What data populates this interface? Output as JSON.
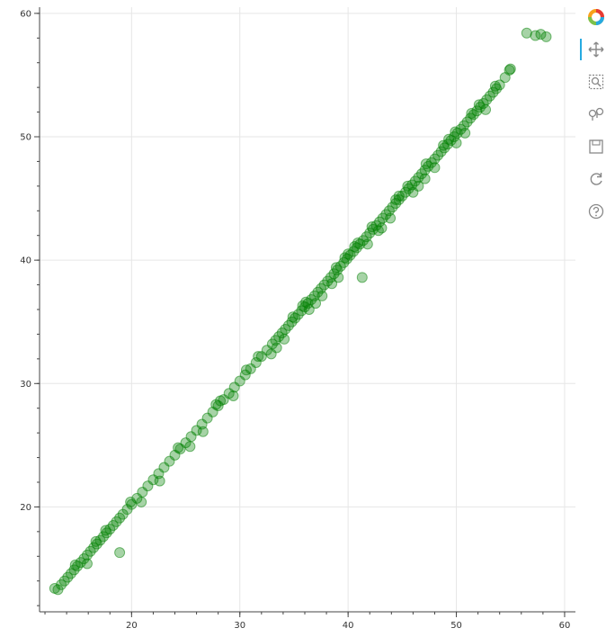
{
  "toolbar": {
    "logo_icon": "bokeh-logo-icon",
    "tools": [
      {
        "name": "pan-tool",
        "icon": "pan-icon",
        "active": true
      },
      {
        "name": "box-zoom-tool",
        "icon": "box-zoom-icon",
        "active": false
      },
      {
        "name": "wheel-zoom-tool",
        "icon": "wheel-zoom-icon",
        "active": false
      },
      {
        "name": "save-tool",
        "icon": "save-icon",
        "active": false
      },
      {
        "name": "reset-tool",
        "icon": "reset-icon",
        "active": false
      },
      {
        "name": "help-tool",
        "icon": "help-icon",
        "active": false
      }
    ]
  },
  "chart_data": {
    "type": "scatter",
    "title": "",
    "xlabel": "",
    "ylabel": "",
    "xlim": [
      11.5,
      61
    ],
    "ylim": [
      11.5,
      60.5
    ],
    "x_ticks": [
      20,
      30,
      40,
      50,
      60
    ],
    "y_ticks": [
      20,
      30,
      40,
      50,
      60
    ],
    "grid": true,
    "marker_color": "#008000",
    "marker_alpha": 0.35,
    "series": [
      {
        "x": [
          13.2,
          13.5,
          13.8,
          14.1,
          14.4,
          14.7,
          15.0,
          15.3,
          15.6,
          15.9,
          16.2,
          16.5,
          16.8,
          17.1,
          17.4,
          17.7,
          18.0,
          18.3,
          18.6,
          18.9,
          19.2,
          19.6,
          20.0,
          20.5,
          21.0,
          21.5,
          22.0,
          22.5,
          23.0,
          23.5,
          24.0,
          24.5,
          25.0,
          25.5,
          26.0,
          26.5,
          27.0,
          27.5,
          28.0,
          28.5,
          29.0,
          29.5,
          30.0,
          30.5,
          31.0,
          31.5,
          32.0,
          32.5,
          33.0,
          33.3,
          33.6,
          33.9,
          34.2,
          34.5,
          34.8,
          35.1,
          35.4,
          35.7,
          36.0,
          36.3,
          36.6,
          36.9,
          37.2,
          37.5,
          37.8,
          38.1,
          38.4,
          38.7,
          39.0,
          39.3,
          39.6,
          39.9,
          40.2,
          40.5,
          40.8,
          41.1,
          41.4,
          41.7,
          42.0,
          42.3,
          42.6,
          42.9,
          43.2,
          43.5,
          43.8,
          44.1,
          44.4,
          44.7,
          45.0,
          45.3,
          45.6,
          45.9,
          46.2,
          46.5,
          46.8,
          47.1,
          47.4,
          47.7,
          48.0,
          48.3,
          48.6,
          48.9,
          49.2,
          49.5,
          49.8,
          50.1,
          50.4,
          50.7,
          51.0,
          51.3,
          51.6,
          51.9,
          52.2,
          52.5,
          52.8,
          53.1,
          53.4,
          53.7,
          54.0,
          54.5,
          55.0,
          56.5,
          57.3,
          57.8,
          58.3,
          18.9,
          28.2,
          29.4,
          36.1,
          38.5,
          39.7,
          42.8,
          46.5,
          47.2,
          48.0,
          49.3,
          14.8,
          15.9,
          17.6,
          20.9,
          24.3,
          26.6,
          31.7,
          34.1,
          40.6,
          43.9,
          44.4,
          47.1,
          51.4,
          52.7,
          53.6,
          41.3,
          16.7,
          22.6,
          27.8,
          33.4,
          35.8,
          37.0,
          45.5,
          50.0,
          54.9,
          36.4,
          38.9,
          39.1,
          40.0,
          41.8,
          42.2,
          43.1,
          44.7,
          46.0,
          48.8,
          12.9,
          19.9,
          25.4,
          30.6,
          32.9,
          34.9,
          37.6,
          49.9,
          50.8,
          52.1,
          40.9
        ],
        "y": [
          13.3,
          13.7,
          14.0,
          14.3,
          14.6,
          14.9,
          15.2,
          15.5,
          15.8,
          16.1,
          16.4,
          16.7,
          17.0,
          17.3,
          17.6,
          17.9,
          18.2,
          18.5,
          18.8,
          19.1,
          19.4,
          19.8,
          20.2,
          20.7,
          21.2,
          21.7,
          22.2,
          22.7,
          23.2,
          23.7,
          24.2,
          24.7,
          25.2,
          25.7,
          26.2,
          26.7,
          27.2,
          27.7,
          28.2,
          28.7,
          29.2,
          29.7,
          30.2,
          30.7,
          31.2,
          31.7,
          32.2,
          32.7,
          33.2,
          33.5,
          33.8,
          34.1,
          34.4,
          34.7,
          35.0,
          35.3,
          35.6,
          35.9,
          36.2,
          36.5,
          36.8,
          37.1,
          37.4,
          37.7,
          38.0,
          38.3,
          38.6,
          38.9,
          39.2,
          39.5,
          39.8,
          40.1,
          40.4,
          40.7,
          41.0,
          41.3,
          41.6,
          41.9,
          42.2,
          42.5,
          42.8,
          43.1,
          43.4,
          43.7,
          44.0,
          44.3,
          44.6,
          44.9,
          45.2,
          45.5,
          45.8,
          46.1,
          46.4,
          46.7,
          47.0,
          47.3,
          47.6,
          47.9,
          48.2,
          48.5,
          48.8,
          49.1,
          49.4,
          49.7,
          50.0,
          50.3,
          50.6,
          50.9,
          51.2,
          51.5,
          51.8,
          52.1,
          52.4,
          52.7,
          53.0,
          53.3,
          53.6,
          53.9,
          54.2,
          54.8,
          55.5,
          58.4,
          58.2,
          58.3,
          58.1,
          16.3,
          28.6,
          29.0,
          36.6,
          38.1,
          40.2,
          42.4,
          46.0,
          47.8,
          47.5,
          49.8,
          15.3,
          15.4,
          18.1,
          20.4,
          24.8,
          26.1,
          32.2,
          33.6,
          41.1,
          43.4,
          44.9,
          46.6,
          51.9,
          52.2,
          54.1,
          38.6,
          17.2,
          22.1,
          28.3,
          32.9,
          36.3,
          36.5,
          46.0,
          49.5,
          55.4,
          36.0,
          39.4,
          38.6,
          40.5,
          41.3,
          42.7,
          42.6,
          45.2,
          45.5,
          49.3,
          13.4,
          20.4,
          24.9,
          31.1,
          32.4,
          35.4,
          37.1,
          50.4,
          50.3,
          52.6,
          41.4
        ]
      }
    ]
  }
}
